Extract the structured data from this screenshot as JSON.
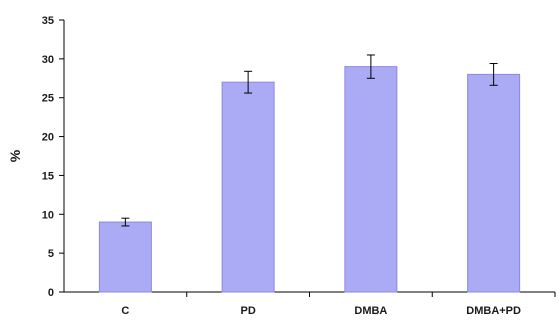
{
  "chart_data": {
    "type": "bar",
    "title": "",
    "xlabel": "",
    "ylabel": "%",
    "categories": [
      "C",
      "PD",
      "DMBA",
      "DMBA+PD"
    ],
    "values": [
      9,
      27,
      29,
      28
    ],
    "error": [
      0.5,
      1.4,
      1.5,
      1.4
    ],
    "ylim": [
      0,
      35
    ],
    "yticks": [
      0,
      5,
      10,
      15,
      20,
      25,
      30,
      35
    ],
    "grid": false,
    "legend": "none",
    "bar_fill": "#aaaaf5",
    "bar_stroke": "#8a8ae0",
    "axis_color": "#000000"
  }
}
